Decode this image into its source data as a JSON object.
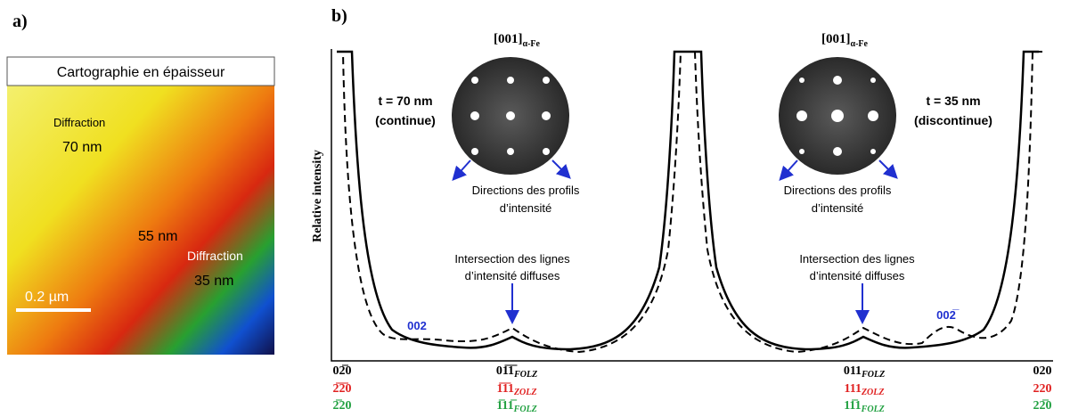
{
  "panel_a": {
    "label": "a)",
    "title": "Cartographie en épaisseur",
    "annotations": [
      "Diffraction",
      "70 nm",
      "55 nm",
      "Diffraction",
      "35 nm"
    ],
    "scale_bar": "0.2 µm"
  },
  "panel_b": {
    "label": "b)",
    "y_axis_label": "Relative intensity",
    "patterns": [
      {
        "zone": "[001]",
        "phase": "α-Fe",
        "thickness": "t = 70 nm",
        "kind": "(continue)",
        "directions": [
          "Directions des profils",
          "d’intensité"
        ]
      },
      {
        "zone": "[001]",
        "phase": "α-Fe",
        "thickness": "t = 35 nm",
        "kind": "(discontinue)",
        "directions": [
          "Directions des profils",
          "d’intensité"
        ]
      }
    ],
    "intersection_notes": [
      [
        "Intersection des lignes",
        "d’intensité diffuses"
      ],
      [
        "Intersection des lignes",
        "d’intensité diffuses"
      ]
    ],
    "peak_labels": [
      "002",
      "002̅"
    ],
    "positions": [
      [
        {
          "index": "02̅0"
        },
        {
          "index": "2̅2̅0"
        },
        {
          "index": "2̅20"
        }
      ],
      [
        {
          "index": "01̅1̅",
          "zone": "FOLZ"
        },
        {
          "index": "1̅1̅1",
          "zone": "ZOLZ"
        },
        {
          "index": "1̅11̅",
          "zone": "FOLZ"
        }
      ],
      [
        {
          "index": "011",
          "zone": "FOLZ"
        },
        {
          "index": "111",
          "zone": "ZOLZ"
        },
        {
          "index": "11̅1",
          "zone": "FOLZ"
        }
      ],
      [
        {
          "index": "020"
        },
        {
          "index": "220"
        },
        {
          "index": "22̅0"
        }
      ]
    ]
  }
}
